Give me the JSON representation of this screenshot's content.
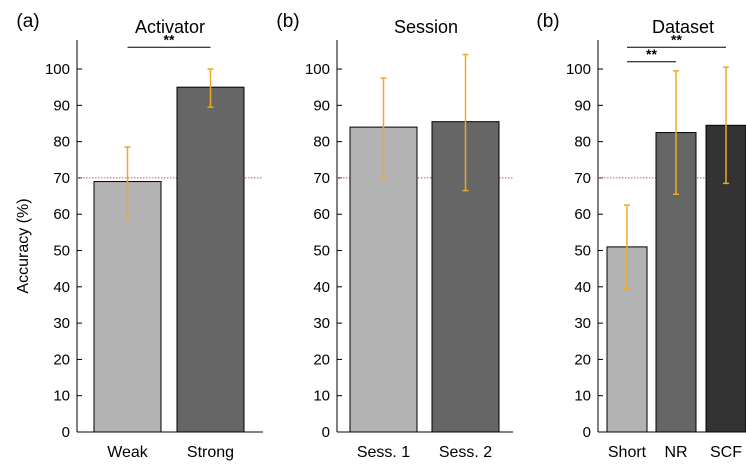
{
  "colors": {
    "light_bar": "#b3b3b3",
    "dark_bar": "#666666",
    "darkest_bar": "#333333",
    "error_bar": "#f0a820",
    "chance_line": "#e05050"
  },
  "chart_data": [
    {
      "type": "bar",
      "panel_label": "(a)",
      "title": "Activator",
      "ylabel": "Accuracy (%)",
      "ylim": [
        0,
        108
      ],
      "yticks": [
        0,
        10,
        20,
        30,
        40,
        50,
        60,
        70,
        80,
        90,
        100
      ],
      "categories": [
        "Weak",
        "Strong"
      ],
      "values": [
        69,
        95
      ],
      "error_low": [
        59,
        89.5
      ],
      "error_high": [
        78.5,
        100
      ],
      "bar_colors": [
        "light_bar",
        "dark_bar"
      ],
      "reference_line": 70,
      "significance": [
        {
          "from": 0,
          "to": 1,
          "label": "**",
          "y": 106
        }
      ]
    },
    {
      "type": "bar",
      "panel_label": "(b)",
      "title": "Session",
      "ylabel": "",
      "ylim": [
        0,
        108
      ],
      "yticks": [
        0,
        10,
        20,
        30,
        40,
        50,
        60,
        70,
        80,
        90,
        100
      ],
      "categories": [
        "Sess. 1",
        "Sess. 2"
      ],
      "values": [
        84,
        85.5
      ],
      "error_low": [
        70,
        66.5
      ],
      "error_high": [
        97.5,
        104
      ],
      "bar_colors": [
        "light_bar",
        "dark_bar"
      ],
      "reference_line": 70,
      "significance": []
    },
    {
      "type": "bar",
      "panel_label": "(b)",
      "title": "Dataset",
      "ylabel": "",
      "ylim": [
        0,
        108
      ],
      "yticks": [
        0,
        10,
        20,
        30,
        40,
        50,
        60,
        70,
        80,
        90,
        100
      ],
      "categories": [
        "Short",
        "NR",
        "SCF"
      ],
      "values": [
        51,
        82.5,
        84.5
      ],
      "error_low": [
        39.5,
        65.5,
        68.5
      ],
      "error_high": [
        62.5,
        99.5,
        100.5
      ],
      "bar_colors": [
        "light_bar",
        "dark_bar",
        "darkest_bar"
      ],
      "reference_line": 70,
      "significance": [
        {
          "from": 0,
          "to": 2,
          "label": "**",
          "y": 106
        },
        {
          "from": 0,
          "to": 1,
          "label": "**",
          "y": 102
        }
      ]
    }
  ]
}
